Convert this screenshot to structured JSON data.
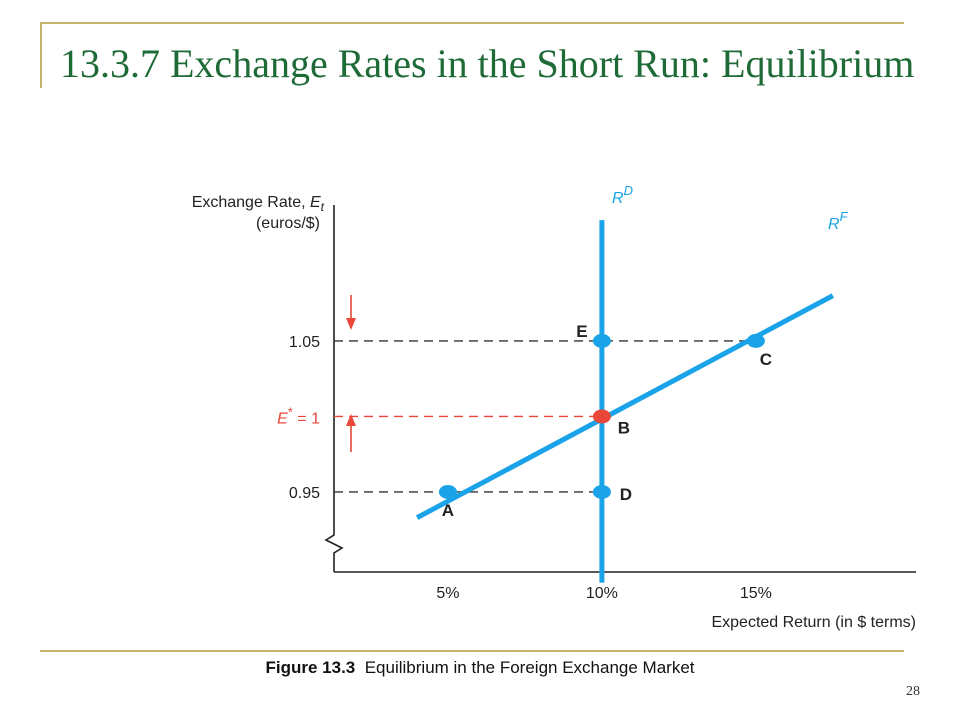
{
  "slide": {
    "title": "13.3.7 Exchange Rates in the Short Run: Equilibrium",
    "caption_bold": "Figure 13.3",
    "caption_text": "Equilibrium in the Foreign Exchange Market",
    "page_number": "28"
  },
  "colors": {
    "title": "#1f6b38",
    "frame": "#c8b46a",
    "curve": "#1aa3e8",
    "equilibrium": "#e8473a"
  },
  "chart_data": {
    "type": "line",
    "ylabel_line1": "Exchange Rate,",
    "ylabel_line1_symbol": "E",
    "ylabel_line1_sub": "t",
    "ylabel_line2": "(euros/$)",
    "xlabel": "Expected Return (in $ terms)",
    "x_ticks": [
      {
        "value": 5,
        "label": "5%"
      },
      {
        "value": 10,
        "label": "10%"
      },
      {
        "value": 15,
        "label": "15%"
      }
    ],
    "y_ticks": [
      {
        "value": 1.05,
        "label": "1.05"
      },
      {
        "value": 0.95,
        "label": "0.95"
      }
    ],
    "equilibrium_label": {
      "symbol": "E",
      "sup": "*",
      "text": " = 1",
      "value": 1.0
    },
    "xlim": [
      1.3,
      20.2
    ],
    "ylim": [
      0.897,
      1.14
    ],
    "series": [
      {
        "name": "RD",
        "base": "R",
        "sup": "D",
        "points": [
          [
            10,
            0.89
          ],
          [
            10,
            1.13
          ]
        ]
      },
      {
        "name": "RF",
        "base": "R",
        "sup": "F",
        "points": [
          [
            4.0,
            0.933
          ],
          [
            17.5,
            1.08
          ]
        ]
      }
    ],
    "points": [
      {
        "label": "A",
        "x": 5,
        "y": 0.95,
        "color": "curve"
      },
      {
        "label": "B",
        "x": 10,
        "y": 1.0,
        "color": "equilibrium"
      },
      {
        "label": "C",
        "x": 15,
        "y": 1.05,
        "color": "curve"
      },
      {
        "label": "D",
        "x": 10,
        "y": 0.95,
        "color": "curve"
      },
      {
        "label": "E",
        "x": 10,
        "y": 1.05,
        "color": "curve"
      }
    ],
    "arrows": [
      {
        "direction": "down"
      },
      {
        "direction": "up"
      }
    ],
    "grid": false
  }
}
